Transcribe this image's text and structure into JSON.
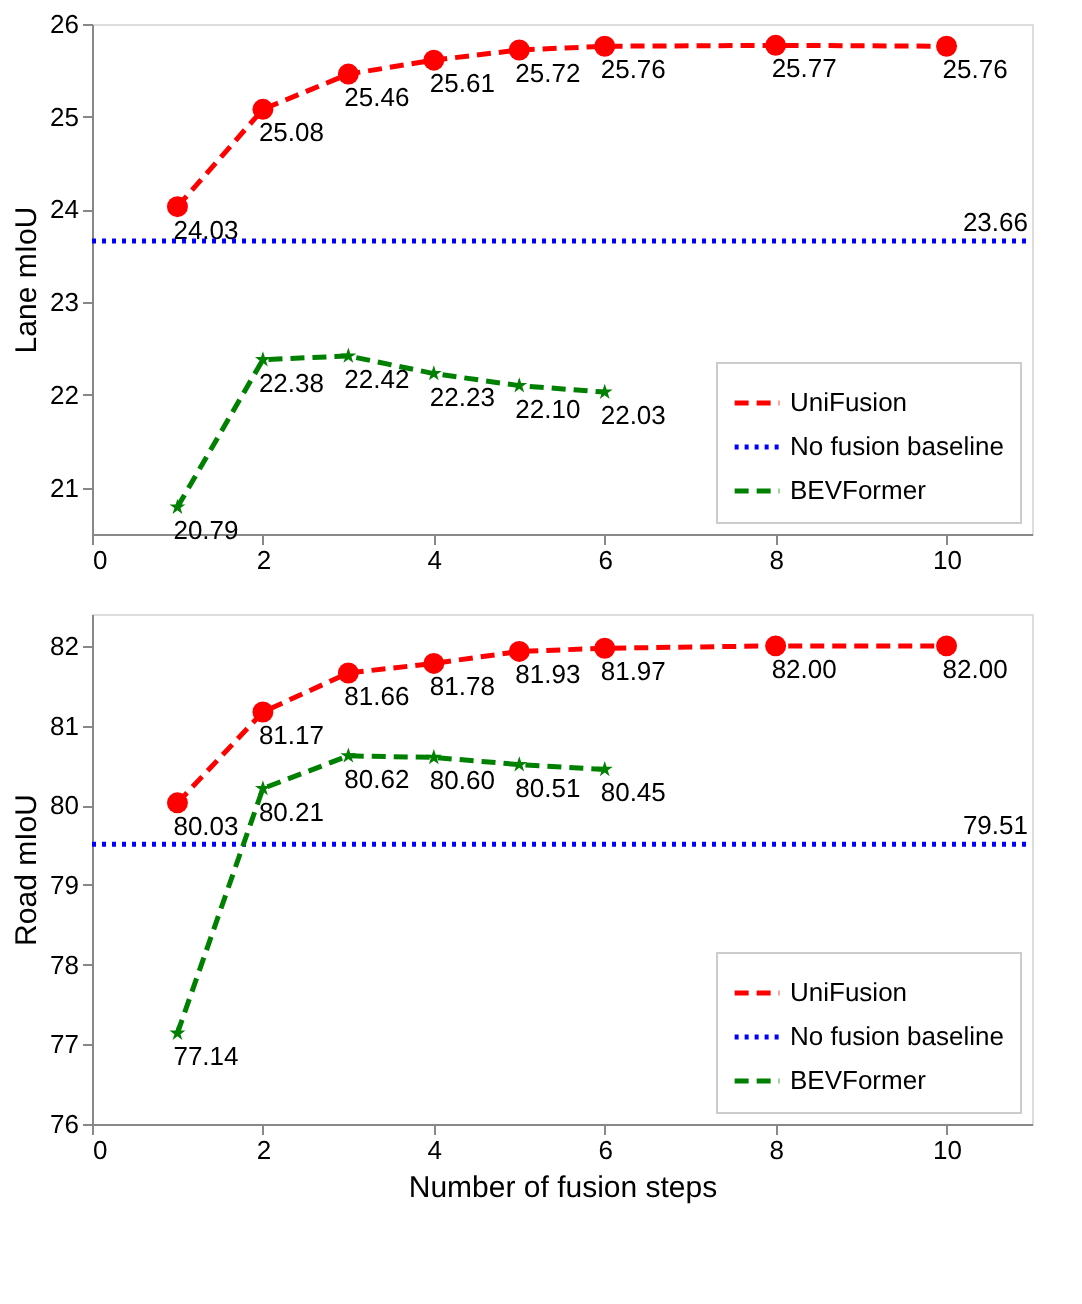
{
  "chart_data": [
    {
      "type": "line",
      "ylabel": "Lane mIoU",
      "xlim": [
        0,
        11
      ],
      "xticks": [
        0,
        2,
        4,
        6,
        8,
        10
      ],
      "ylim": [
        20.5,
        26
      ],
      "yticks": [
        21,
        22,
        23,
        24,
        25,
        26
      ],
      "grid": false,
      "legend": "bottom right",
      "line_style": "dashed",
      "series": [
        {
          "name": "UniFusion",
          "color": "#ff0000",
          "marker": "circle",
          "x": [
            1,
            2,
            3,
            4,
            5,
            6,
            8,
            10
          ],
          "values": [
            24.03,
            25.08,
            25.46,
            25.61,
            25.72,
            25.76,
            25.77,
            25.76
          ],
          "value_labels": [
            "24.03",
            "25.08",
            "25.46",
            "25.61",
            "25.72",
            "25.76",
            "25.77",
            "25.76"
          ]
        },
        {
          "name": "No fusion baseline",
          "color": "#0000ff",
          "marker": "none",
          "line_style": "dotted",
          "x": [
            0,
            11
          ],
          "values": [
            23.66,
            23.66
          ],
          "value_labels": [
            null,
            "23.66"
          ]
        },
        {
          "name": "BEVFormer",
          "color": "#008000",
          "marker": "star",
          "x": [
            1,
            2,
            3,
            4,
            5,
            6
          ],
          "values": [
            20.79,
            22.38,
            22.42,
            22.23,
            22.1,
            22.03
          ],
          "value_labels": [
            "20.79",
            "22.38",
            "22.42",
            "22.23",
            "22.10",
            "22.03"
          ]
        }
      ]
    },
    {
      "type": "line",
      "ylabel": "Road mIoU",
      "xlabel": "Number of fusion steps",
      "xlim": [
        0,
        11
      ],
      "xticks": [
        0,
        2,
        4,
        6,
        8,
        10
      ],
      "ylim": [
        76,
        82.4
      ],
      "yticks": [
        76,
        77,
        78,
        79,
        80,
        81,
        82
      ],
      "grid": false,
      "legend": "bottom right",
      "line_style": "dashed",
      "series": [
        {
          "name": "UniFusion",
          "color": "#ff0000",
          "marker": "circle",
          "x": [
            1,
            2,
            3,
            4,
            5,
            6,
            8,
            10
          ],
          "values": [
            80.03,
            81.17,
            81.66,
            81.78,
            81.93,
            81.97,
            82.0,
            82.0
          ],
          "value_labels": [
            "80.03",
            "81.17",
            "81.66",
            "81.78",
            "81.93",
            "81.97",
            "82.00",
            "82.00"
          ]
        },
        {
          "name": "No fusion baseline",
          "color": "#0000ff",
          "marker": "none",
          "line_style": "dotted",
          "x": [
            0,
            11
          ],
          "values": [
            79.51,
            79.51
          ],
          "value_labels": [
            null,
            "79.51"
          ]
        },
        {
          "name": "BEVFormer",
          "color": "#008000",
          "marker": "star",
          "x": [
            1,
            2,
            3,
            4,
            5,
            6
          ],
          "values": [
            77.14,
            80.21,
            80.62,
            80.6,
            80.51,
            80.45
          ],
          "value_labels": [
            "77.14",
            "80.21",
            "80.62",
            "80.60",
            "80.51",
            "80.45"
          ]
        }
      ]
    }
  ]
}
